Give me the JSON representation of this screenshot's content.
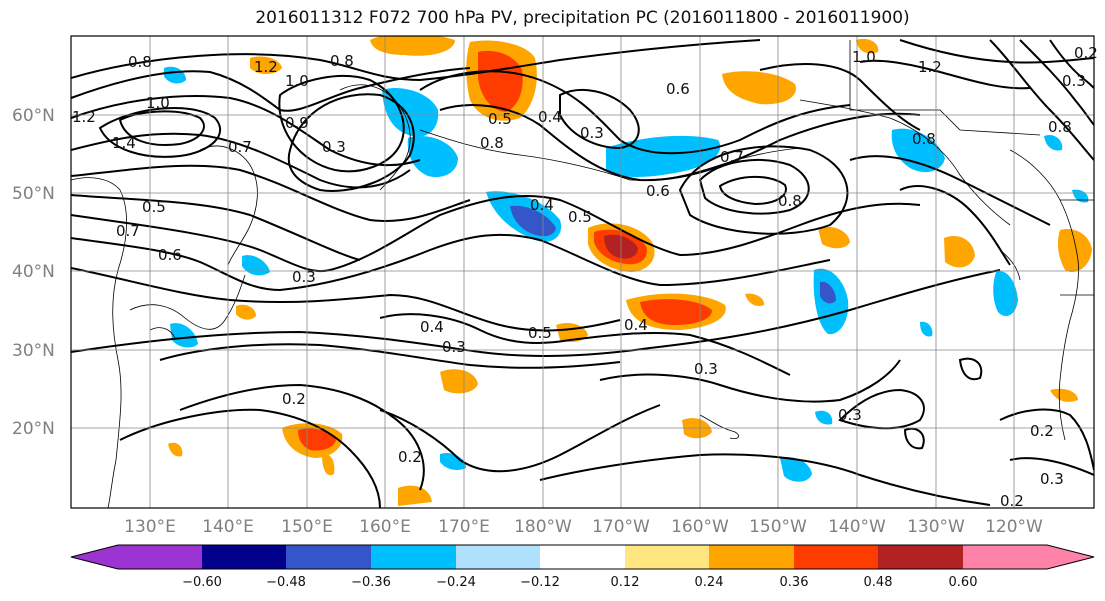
{
  "title": "2016011312 F072 700 hPa PV, precipitation PC (2016011800 - 2016011900)",
  "lat_labels": [
    "60°N",
    "50°N",
    "40°N",
    "30°N",
    "20°N"
  ],
  "lon_labels": [
    "130°E",
    "140°E",
    "150°E",
    "160°E",
    "170°E",
    "180°W",
    "170°W",
    "160°W",
    "150°W",
    "140°W",
    "130°W",
    "120°W"
  ],
  "colorbar": {
    "colors": [
      "#9b34d2",
      "#00008a",
      "#3456c8",
      "#00bfff",
      "#b0e2ff",
      "#ffffff",
      "#ffe680",
      "#ffa500",
      "#ff3c00",
      "#b22222",
      "#ff82a8"
    ],
    "tick_labels": [
      "−0.60",
      "−0.48",
      "−0.36",
      "−0.24",
      "−0.12",
      "0.12",
      "0.24",
      "0.36",
      "0.48",
      "0.60"
    ]
  },
  "contour_labels": [
    "0.8",
    "1.2",
    "1.0",
    "0.8",
    "1.0",
    "1.2",
    "1.4",
    "0.9",
    "0.3",
    "0.7",
    "0.5",
    "0.6",
    "0.7",
    "0.3",
    "0.8",
    "0.4",
    "0.3",
    "0.5",
    "0.4",
    "0.5",
    "0.6",
    "0.7",
    "0.8",
    "0.4",
    "0.5",
    "0.4",
    "0.3",
    "0.3",
    "0.2",
    "0.2",
    "0.3",
    "0.2",
    "0.3",
    "0.2",
    "1.0",
    "1.2",
    "0.8",
    "0.3",
    "0.8",
    "0.2",
    "0.6"
  ]
}
